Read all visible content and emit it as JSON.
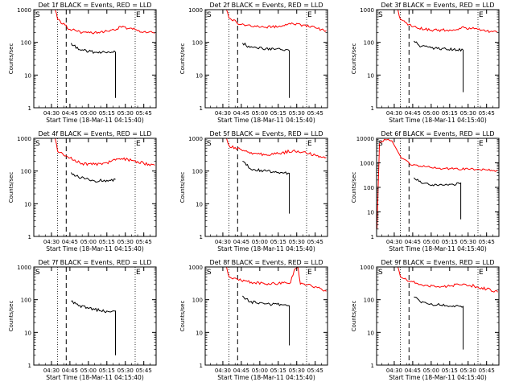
{
  "page": {
    "xlabel": "Start Time (18-Mar-11 04:15:40)",
    "ylabel": "Counts/sec",
    "x_tick_labels": [
      "04:30",
      "04:45",
      "05:00",
      "05:15",
      "05:30",
      "05:45"
    ],
    "marker_s": "S",
    "marker_e": "E",
    "colors": {
      "events": "#000000",
      "lld": "#ff0000",
      "axes": "#000000"
    }
  },
  "chart_data": [
    {
      "type": "line",
      "title": "Det 1f BLACK = Events, RED = LLD",
      "x_range": [
        "04:15:40",
        "05:55:00"
      ],
      "ylim": [
        1,
        1000
      ],
      "yscale": "log",
      "y_tick_labels": [
        "1",
        "10",
        "100",
        "1000"
      ],
      "events": [
        [
          "04:46",
          95
        ],
        [
          "04:52",
          60
        ],
        [
          "05:05",
          50
        ],
        [
          "05:18",
          48
        ],
        [
          "05:22",
          50
        ],
        [
          "05:22",
          2
        ]
      ],
      "lld": [
        [
          "04:33",
          1000
        ],
        [
          "04:35",
          500
        ],
        [
          "04:45",
          250
        ],
        [
          "04:55",
          200
        ],
        [
          "05:05",
          200
        ],
        [
          "05:15",
          220
        ],
        [
          "05:27",
          290
        ],
        [
          "05:35",
          270
        ],
        [
          "05:45",
          210
        ],
        [
          "05:54",
          190
        ]
      ],
      "vline_dotted": [
        "04:35",
        "05:38"
      ],
      "vline_dashed": [
        "04:42"
      ]
    },
    {
      "type": "line",
      "title": "Det 2f BLACK = Events, RED = LLD",
      "x_range": [
        "04:15:40",
        "05:55:00"
      ],
      "ylim": [
        1,
        1000
      ],
      "yscale": "log",
      "y_tick_labels": [
        "1",
        "10",
        "100",
        "1000"
      ],
      "events": [
        [
          "04:46",
          95
        ],
        [
          "04:52",
          70
        ],
        [
          "05:05",
          65
        ],
        [
          "05:18",
          60
        ],
        [
          "05:24",
          55
        ],
        [
          "05:24",
          2
        ]
      ],
      "lld": [
        [
          "04:33",
          1000
        ],
        [
          "04:35",
          550
        ],
        [
          "04:45",
          350
        ],
        [
          "04:55",
          300
        ],
        [
          "05:05",
          290
        ],
        [
          "05:15",
          300
        ],
        [
          "05:27",
          370
        ],
        [
          "05:35",
          340
        ],
        [
          "05:45",
          280
        ],
        [
          "05:54",
          230
        ]
      ],
      "vline_dotted": [
        "04:35",
        "05:38"
      ],
      "vline_dashed": [
        "04:42"
      ]
    },
    {
      "type": "line",
      "title": "Det 3f BLACK = Events, RED = LLD",
      "x_range": [
        "04:15:40",
        "05:55:00"
      ],
      "ylim": [
        1,
        1000
      ],
      "yscale": "log",
      "y_tick_labels": [
        "1",
        "10",
        "100",
        "1000"
      ],
      "events": [
        [
          "04:46",
          110
        ],
        [
          "04:52",
          75
        ],
        [
          "05:05",
          65
        ],
        [
          "05:18",
          60
        ],
        [
          "05:26",
          58
        ],
        [
          "05:26",
          3
        ]
      ],
      "lld": [
        [
          "04:33",
          1000
        ],
        [
          "04:35",
          500
        ],
        [
          "04:45",
          300
        ],
        [
          "04:55",
          250
        ],
        [
          "05:05",
          230
        ],
        [
          "05:15",
          240
        ],
        [
          "05:27",
          280
        ],
        [
          "05:35",
          260
        ],
        [
          "05:45",
          220
        ],
        [
          "05:54",
          200
        ]
      ],
      "vline_dotted": [
        "04:35",
        "05:38"
      ],
      "vline_dashed": [
        "04:42"
      ]
    },
    {
      "type": "line",
      "title": "Det 4f BLACK = Events, RED = LLD",
      "x_range": [
        "04:15:40",
        "05:55:00"
      ],
      "ylim": [
        1,
        1000
      ],
      "yscale": "log",
      "y_tick_labels": [
        "1",
        "10",
        "100",
        "1000"
      ],
      "events": [
        [
          "04:46",
          90
        ],
        [
          "04:52",
          65
        ],
        [
          "05:05",
          50
        ],
        [
          "05:15",
          52
        ],
        [
          "05:22",
          55
        ]
      ],
      "lld": [
        [
          "04:33",
          1000
        ],
        [
          "04:35",
          400
        ],
        [
          "04:45",
          250
        ],
        [
          "04:55",
          170
        ],
        [
          "05:05",
          160
        ],
        [
          "05:15",
          180
        ],
        [
          "05:27",
          240
        ],
        [
          "05:35",
          210
        ],
        [
          "05:45",
          170
        ],
        [
          "05:54",
          150
        ]
      ],
      "vline_dotted": [
        "04:35",
        "05:38"
      ],
      "vline_dashed": [
        "04:42"
      ]
    },
    {
      "type": "line",
      "title": "Det 5f BLACK = Events, RED = LLD",
      "x_range": [
        "04:15:40",
        "05:55:00"
      ],
      "ylim": [
        1,
        1000
      ],
      "yscale": "log",
      "y_tick_labels": [
        "1",
        "10",
        "100",
        "1000"
      ],
      "events": [
        [
          "04:46",
          200
        ],
        [
          "04:52",
          120
        ],
        [
          "05:05",
          100
        ],
        [
          "05:18",
          90
        ],
        [
          "05:24",
          85
        ],
        [
          "05:24",
          5
        ]
      ],
      "lld": [
        [
          "04:33",
          1000
        ],
        [
          "04:35",
          600
        ],
        [
          "04:45",
          450
        ],
        [
          "04:55",
          350
        ],
        [
          "05:05",
          320
        ],
        [
          "05:15",
          340
        ],
        [
          "05:27",
          420
        ],
        [
          "05:35",
          380
        ],
        [
          "05:45",
          310
        ],
        [
          "05:54",
          260
        ]
      ],
      "vline_dotted": [
        "04:35",
        "05:38"
      ],
      "vline_dashed": [
        "04:42"
      ]
    },
    {
      "type": "line",
      "title": "Det 6f BLACK = Events, RED = LLD",
      "x_range": [
        "04:15:40",
        "05:55:00"
      ],
      "ylim": [
        1,
        10000
      ],
      "yscale": "log",
      "y_tick_labels": [
        "1",
        "10",
        "100",
        "1000",
        "10000"
      ],
      "events": [
        [
          "04:46",
          250
        ],
        [
          "04:52",
          150
        ],
        [
          "05:05",
          120
        ],
        [
          "05:18",
          130
        ],
        [
          "05:24",
          150
        ],
        [
          "05:24",
          5
        ]
      ],
      "lld": [
        [
          "04:16",
          2
        ],
        [
          "04:18",
          6000
        ],
        [
          "04:22",
          9000
        ],
        [
          "04:28",
          8000
        ],
        [
          "04:36",
          1500
        ],
        [
          "04:45",
          800
        ],
        [
          "04:55",
          700
        ],
        [
          "05:05",
          600
        ],
        [
          "05:15",
          580
        ],
        [
          "05:30",
          560
        ],
        [
          "05:45",
          520
        ],
        [
          "05:54",
          480
        ]
      ],
      "vline_dotted": [
        "04:35",
        "05:38"
      ],
      "vline_dashed": [
        "04:42"
      ]
    },
    {
      "type": "line",
      "title": "Det 7f BLACK = Events, RED = LLD",
      "x_range": [
        "04:15:40",
        "05:55:00"
      ],
      "ylim": [
        1,
        1000
      ],
      "yscale": "log",
      "y_tick_labels": [
        "1",
        "10",
        "100",
        "1000"
      ],
      "events": [
        [
          "04:46",
          90
        ],
        [
          "04:52",
          65
        ],
        [
          "05:05",
          50
        ],
        [
          "05:18",
          42
        ],
        [
          "05:22",
          45
        ],
        [
          "05:22",
          2
        ]
      ],
      "lld": [],
      "vline_dotted": [
        "04:35",
        "05:38"
      ],
      "vline_dashed": [
        "04:42"
      ]
    },
    {
      "type": "line",
      "title": "Det 8f BLACK = Events, RED = LLD",
      "x_range": [
        "04:15:40",
        "05:55:00"
      ],
      "ylim": [
        1,
        1000
      ],
      "yscale": "log",
      "y_tick_labels": [
        "1",
        "10",
        "100",
        "1000"
      ],
      "events": [
        [
          "04:46",
          130
        ],
        [
          "04:52",
          85
        ],
        [
          "05:05",
          75
        ],
        [
          "05:18",
          70
        ],
        [
          "05:24",
          65
        ],
        [
          "05:24",
          4
        ]
      ],
      "lld": [
        [
          "04:33",
          1000
        ],
        [
          "04:35",
          500
        ],
        [
          "04:45",
          380
        ],
        [
          "04:55",
          330
        ],
        [
          "05:05",
          300
        ],
        [
          "05:15",
          310
        ],
        [
          "05:25",
          330
        ],
        [
          "05:28",
          800
        ],
        [
          "05:31",
          1000
        ],
        [
          "05:33",
          300
        ],
        [
          "05:45",
          250
        ],
        [
          "05:54",
          180
        ]
      ],
      "vline_dotted": [
        "04:35",
        "05:38"
      ],
      "vline_dashed": [
        "04:42"
      ]
    },
    {
      "type": "line",
      "title": "Det 9f BLACK = Events, RED = LLD",
      "x_range": [
        "04:15:40",
        "05:55:00"
      ],
      "ylim": [
        1,
        1000
      ],
      "yscale": "log",
      "y_tick_labels": [
        "1",
        "10",
        "100",
        "1000"
      ],
      "events": [
        [
          "04:46",
          120
        ],
        [
          "04:52",
          80
        ],
        [
          "05:05",
          70
        ],
        [
          "05:18",
          65
        ],
        [
          "05:26",
          62
        ],
        [
          "05:26",
          3
        ]
      ],
      "lld": [
        [
          "04:33",
          1000
        ],
        [
          "04:35",
          500
        ],
        [
          "04:45",
          350
        ],
        [
          "04:55",
          280
        ],
        [
          "05:05",
          250
        ],
        [
          "05:15",
          260
        ],
        [
          "05:27",
          300
        ],
        [
          "05:35",
          260
        ],
        [
          "05:45",
          210
        ],
        [
          "05:54",
          170
        ]
      ],
      "vline_dotted": [
        "04:35",
        "05:38"
      ],
      "vline_dashed": [
        "04:42"
      ]
    }
  ]
}
